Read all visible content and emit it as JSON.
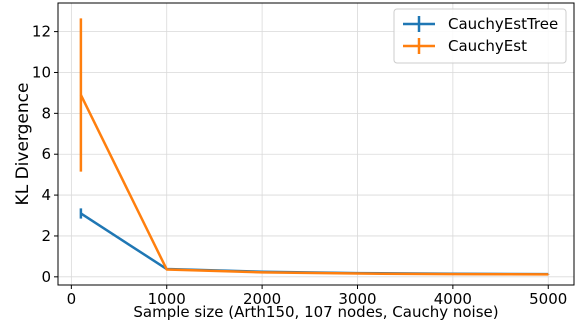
{
  "chart_data": {
    "type": "line",
    "title": "",
    "xlabel": "Sample size (Arth150, 107 nodes, Cauchy noise)",
    "ylabel": "KL Divergence",
    "xlim": [
      -140,
      5270
    ],
    "ylim": [
      -0.4,
      13.4
    ],
    "xticks": [
      0,
      1000,
      2000,
      3000,
      4000,
      5000
    ],
    "yticks": [
      0,
      2,
      4,
      6,
      8,
      10,
      12
    ],
    "grid": true,
    "legend_position": "top-right",
    "series": [
      {
        "name": "CauchyEstTree",
        "color": "#1f77b4",
        "x": [
          100,
          1000,
          2000,
          3000,
          4000,
          5000
        ],
        "y": [
          3.1,
          0.38,
          0.25,
          0.18,
          0.15,
          0.13
        ],
        "err": [
          0.25,
          0.02,
          0.02,
          0.01,
          0.01,
          0.01
        ]
      },
      {
        "name": "CauchyEst",
        "color": "#ff7f0e",
        "x": [
          100,
          1000,
          2000,
          3000,
          4000,
          5000
        ],
        "y": [
          8.9,
          0.36,
          0.22,
          0.16,
          0.13,
          0.12
        ],
        "err": [
          3.75,
          0.02,
          0.02,
          0.01,
          0.01,
          0.01
        ]
      }
    ]
  }
}
